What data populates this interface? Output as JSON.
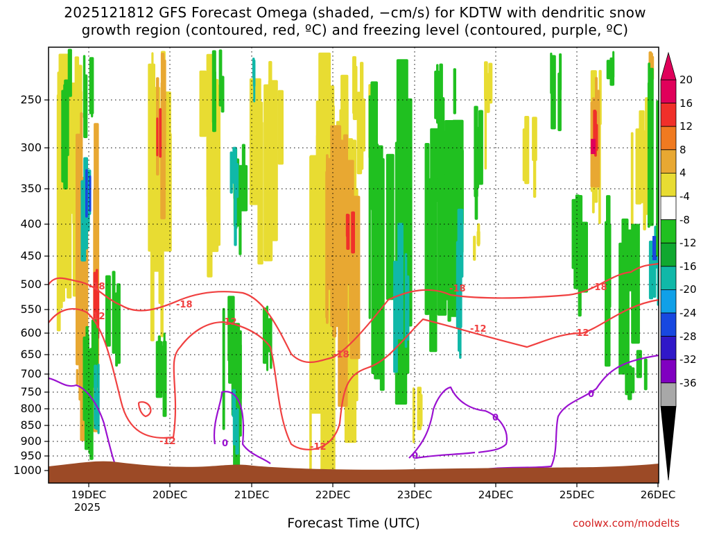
{
  "title": {
    "line1": "2025121812 GFS Forecast Omega (shaded, −cm/s) for KDTW with dendritic snow",
    "line2": "growth region (contoured, red, ºC) and freezing level (contoured, purple, ºC)"
  },
  "chart_data": {
    "type": "heatmap",
    "title": "2025121812 GFS Forecast Omega (shaded, −cm/s) for KDTW with dendritic snow growth region (contoured, red, ºC) and freezing level (contoured, purple, ºC)",
    "xlabel": "Forecast Time (UTC)",
    "ylabel": "",
    "x_ticks": [
      "19DEC",
      "20DEC",
      "21DEC",
      "22DEC",
      "23DEC",
      "24DEC",
      "25DEC",
      "26DEC"
    ],
    "x_year": "2025",
    "y_ticks": [
      "250",
      "300",
      "350",
      "400",
      "450",
      "500",
      "550",
      "600",
      "650",
      "700",
      "750",
      "800",
      "850",
      "900",
      "950",
      "1000"
    ],
    "y_scale": "pressure (log)",
    "grid": true,
    "colorbar": {
      "labels": [
        "20",
        "16",
        "12",
        "8",
        "4",
        "-4",
        "-8",
        "-12",
        "-16",
        "-20",
        "-24",
        "-28",
        "-32",
        "-36"
      ],
      "colors": [
        "#e0005a",
        "#f0302a",
        "#f07a20",
        "#e8a832",
        "#e8dc32",
        "#ffffff",
        "#20c020",
        "#10a830",
        "#10b8a8",
        "#10a0e8",
        "#1848e0",
        "#3018c8",
        "#8000c0",
        "#a8a8a8"
      ]
    },
    "contours": {
      "dgz_red": {
        "color": "#f04040",
        "labels": [
          "-18",
          "-12",
          "-18",
          "-12",
          "-12",
          "-12",
          "-18",
          "-18",
          "-12",
          "-18",
          "-12"
        ]
      },
      "freezing_purple": {
        "color": "#9a10d0",
        "labels": [
          "0",
          "0",
          "0",
          "0"
        ]
      }
    }
  },
  "credit": "coolwx.com/modelts"
}
